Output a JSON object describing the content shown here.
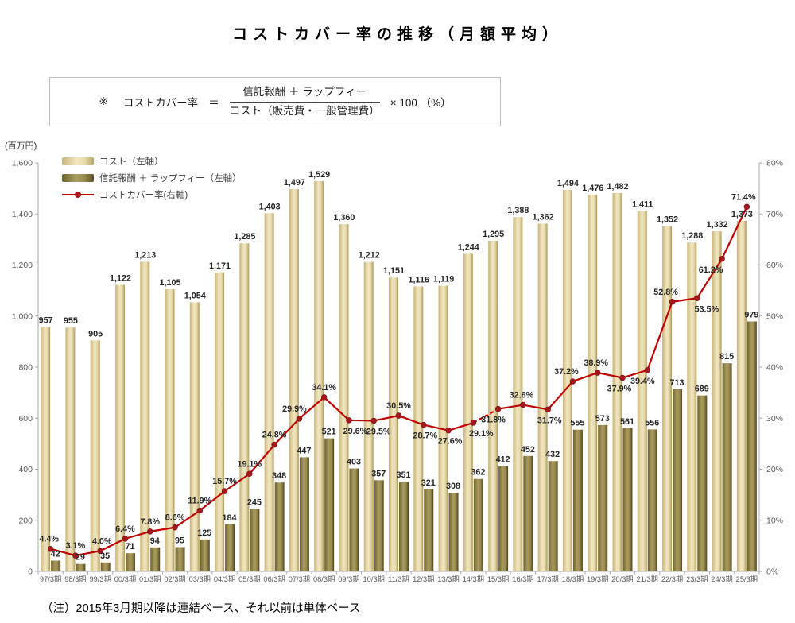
{
  "title": "コストカバー率の推移（月額平均）",
  "formula": {
    "prefix": "※",
    "name": "コストカバー率",
    "equals": "＝",
    "numerator": "信託報酬 ＋ ラップフィー",
    "denominator": "コスト（販売費・一般管理費）",
    "suffix": "× 100 （%）"
  },
  "unit_label": "(百万円)",
  "legend": {
    "items": [
      {
        "label": "コスト（左軸）",
        "swatch": "light-bar-swatch"
      },
      {
        "label": "信託報酬 ＋ ラップフィー（左軸）",
        "swatch": "dark-bar-swatch"
      },
      {
        "label": "コストカバー率(右軸)",
        "swatch": "red-line-swatch"
      }
    ]
  },
  "note": "（注）2015年3月期以降は連結ベース、それ以前は単体ベース",
  "colors": {
    "bar_light_edge": "#c9b478",
    "bar_light_center": "#f0e6c0",
    "bar_dark_edge": "#5f5426",
    "bar_dark_center": "#a89a5f",
    "line_red": "#c00000",
    "marker_red": "#a6181d",
    "axis_gray": "#a9a9a9",
    "tick_label_gray": "#595959",
    "data_label": "#262626"
  },
  "chart_data": {
    "type": "bar+line combo",
    "title": "コストカバー率の推移（月額平均）",
    "categories": [
      "97/3期",
      "98/3期",
      "99/3期",
      "00/3期",
      "01/3期",
      "02/3期",
      "03/3期",
      "04/3期",
      "05/3期",
      "06/3期",
      "07/3期",
      "08/3期",
      "09/3期",
      "10/3期",
      "11/3期",
      "12/3期",
      "13/3期",
      "14/3期",
      "15/3期",
      "16/3期",
      "17/3期",
      "18/3期",
      "19/3期",
      "20/3期",
      "21/3期",
      "22/3期",
      "23/3期",
      "24/3期",
      "25/3期"
    ],
    "series": [
      {
        "name": "コスト（左軸）",
        "type": "bar",
        "axis": "left",
        "values": [
          957,
          955,
          905,
          1122,
          1213,
          1105,
          1054,
          1171,
          1285,
          1403,
          1497,
          1529,
          1360,
          1212,
          1151,
          1116,
          1119,
          1244,
          1295,
          1388,
          1362,
          1494,
          1476,
          1482,
          1411,
          1352,
          1288,
          1332,
          1373
        ],
        "labels": [
          "957",
          "955",
          "905",
          "1,122",
          "1,213",
          "1,105",
          "1,054",
          "1,171",
          "1,285",
          "1,403",
          "1,497",
          "1,529",
          "1,360",
          "1,212",
          "1,151",
          "1,116",
          "1,119",
          "1,244",
          "1,295",
          "1,388",
          "1,362",
          "1,494",
          "1,476",
          "1,482",
          "1,411",
          "1,352",
          "1,288",
          "1,332",
          "1,373"
        ]
      },
      {
        "name": "信託報酬 ＋ ラップフィー（左軸）",
        "type": "bar",
        "axis": "left",
        "values": [
          42,
          29,
          35,
          71,
          94,
          95,
          125,
          184,
          245,
          348,
          447,
          521,
          403,
          357,
          351,
          321,
          308,
          362,
          412,
          452,
          432,
          555,
          573,
          561,
          556,
          713,
          689,
          815,
          979
        ],
        "labels": [
          "42",
          "29",
          "35",
          "71",
          "94",
          "95",
          "125",
          "184",
          "245",
          "348",
          "447",
          "521",
          "403",
          "357",
          "351",
          "321",
          "308",
          "362",
          "412",
          "452",
          "432",
          "555",
          "573",
          "561",
          "556",
          "713",
          "689",
          "815",
          "979"
        ]
      },
      {
        "name": "コストカバー率(右軸)",
        "type": "line",
        "axis": "right",
        "values": [
          4.4,
          3.1,
          4.0,
          6.4,
          7.8,
          8.6,
          11.9,
          15.7,
          19.1,
          24.8,
          29.9,
          34.1,
          29.6,
          29.5,
          30.5,
          28.7,
          27.6,
          29.1,
          31.8,
          32.6,
          31.7,
          37.2,
          38.9,
          37.9,
          39.4,
          52.8,
          53.5,
          61.2,
          71.4
        ],
        "labels": [
          "4.4%",
          "3.1%",
          "4.0%",
          "6.4%",
          "7.8%",
          "8.6%",
          "11.9%",
          "15.7%",
          "19.1%",
          "24.8%",
          "29.9%",
          "34.1%",
          "29.6%",
          "29.5%",
          "30.5%",
          "28.7%",
          "27.6%",
          "29.1%",
          "31.8%",
          "32.6%",
          "31.7%",
          "37.2%",
          "38.9%",
          "37.9%",
          "39.4%",
          "52.8%",
          "53.5%",
          "61.2%",
          "71.4%"
        ],
        "label_side": [
          "above",
          "above",
          "above",
          "above",
          "above",
          "above",
          "above",
          "above",
          "above",
          "above",
          "above",
          "above",
          "below",
          "below",
          "above",
          "below",
          "below",
          "below",
          "below",
          "above",
          "below",
          "above",
          "above",
          "below",
          "below",
          "above",
          "below",
          "below",
          "above"
        ],
        "label_dx": [
          -2,
          0,
          2,
          0,
          0,
          0,
          0,
          0,
          0,
          0,
          -6,
          0,
          8,
          6,
          0,
          2,
          2,
          10,
          -6,
          -2,
          2,
          -8,
          -2,
          -4,
          -6,
          -8,
          12,
          -14,
          -4
        ],
        "dashed_segment": {
          "from_index": 17,
          "to_index": 18
        }
      }
    ],
    "left_axis": {
      "min": 0,
      "max": 1600,
      "step": 200,
      "ticks": [
        "0",
        "200",
        "400",
        "600",
        "800",
        "1,000",
        "1,200",
        "1,400",
        "1,600"
      ]
    },
    "right_axis": {
      "min": 0,
      "max": 80,
      "step": 10,
      "ticks": [
        "0%",
        "10%",
        "20%",
        "30%",
        "40%",
        "50%",
        "60%",
        "70%",
        "80%"
      ]
    },
    "grid": false,
    "legend_position": "top-left-inside"
  }
}
